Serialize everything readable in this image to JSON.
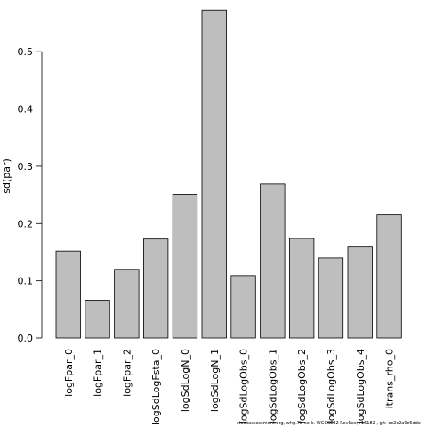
{
  "chart_data": {
    "type": "bar",
    "categories": [
      "logFpar_0",
      "logFpar_1",
      "logFpar_2",
      "logSdLogFsta_0",
      "logSdLogN_0",
      "logSdLogN_1",
      "logSdLogObs_0",
      "logSdLogObs_1",
      "logSdLogObs_2",
      "logSdLogObs_3",
      "logSdLogObs_4",
      "itrans_rho_0"
    ],
    "values": [
      0.152,
      0.066,
      0.12,
      0.173,
      0.251,
      0.573,
      0.109,
      0.269,
      0.174,
      0.14,
      0.159,
      0.215
    ],
    "ylabel": "sd(par)",
    "xlabel": "",
    "ylim": [
      0,
      0.57
    ],
    "yticks": [
      0.0,
      0.1,
      0.2,
      0.3,
      0.4,
      0.5
    ],
    "ytick_labels": [
      "0.0",
      "0.1",
      "0.2",
      "0.3",
      "0.4",
      "0.5"
    ],
    "bar_color": "#bebebe",
    "grid": false
  },
  "footer": "stockassessment.org, whg.7b-ce-k. WGCSE22 RevRec, r16182 , git: ec2c2a0c6dde"
}
